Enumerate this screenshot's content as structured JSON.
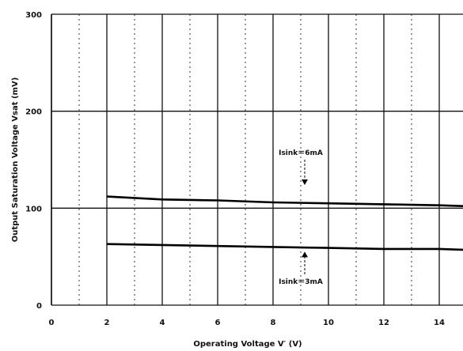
{
  "chart_data": {
    "type": "line",
    "title": "",
    "xlabel": "Operating Voltage  V′ (V)",
    "ylabel": "Output Saturation Voltage Vsat  (mV)",
    "xlim": [
      0,
      15
    ],
    "ylim": [
      0,
      300
    ],
    "x_ticks": [
      "0",
      "2",
      "4",
      "6",
      "8",
      "10",
      "12",
      "14"
    ],
    "y_ticks": [
      "0",
      "100",
      "200",
      "300"
    ],
    "grid": true,
    "series": [
      {
        "name": "Isink=6mA",
        "x": [
          2,
          4,
          6,
          8,
          10,
          12,
          14,
          15
        ],
        "y": [
          112,
          109,
          108,
          106,
          105,
          104,
          103,
          102
        ]
      },
      {
        "name": "Isink=3mA",
        "x": [
          2,
          4,
          6,
          8,
          10,
          12,
          14,
          15
        ],
        "y": [
          63,
          62,
          61,
          60,
          59,
          58,
          58,
          57
        ]
      }
    ],
    "annotations": [
      {
        "text": "Isink＝6mA",
        "x": 9,
        "y": 155
      },
      {
        "text": "Isink＝3mA",
        "x": 9,
        "y": 22
      }
    ]
  }
}
